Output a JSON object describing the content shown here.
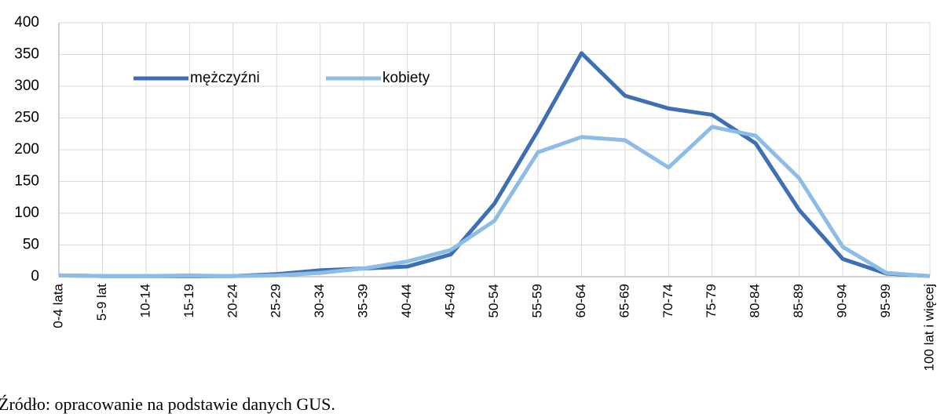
{
  "chart_data": {
    "type": "line",
    "categories": [
      "0-4 lata",
      "5-9 lat",
      "10-14",
      "15-19",
      "20-24",
      "25-29",
      "30-34",
      "35-39",
      "40-44",
      "45-49",
      "50-54",
      "55-59",
      "60-64",
      "65-69",
      "70-74",
      "75-79",
      "80-84",
      "85-89",
      "90-94",
      "95-99",
      "100 lat i więcej"
    ],
    "series": [
      {
        "name": "mężczyźni",
        "color": "#3f6fb3",
        "values": [
          2,
          1,
          1,
          1,
          1,
          4,
          10,
          13,
          16,
          35,
          115,
          230,
          352,
          285,
          265,
          255,
          210,
          105,
          28,
          5,
          1
        ]
      },
      {
        "name": "kobiety",
        "color": "#8dbde6",
        "values": [
          2,
          1,
          1,
          2,
          1,
          2,
          6,
          13,
          24,
          42,
          88,
          196,
          220,
          215,
          172,
          236,
          222,
          155,
          47,
          6,
          1
        ]
      }
    ],
    "ylim": [
      0,
      400
    ],
    "yticks": [
      0,
      50,
      100,
      150,
      200,
      250,
      300,
      350,
      400
    ],
    "grid": true,
    "legend": "top-left"
  },
  "source": "Źródło: opracowanie na podstawie danych GUS."
}
